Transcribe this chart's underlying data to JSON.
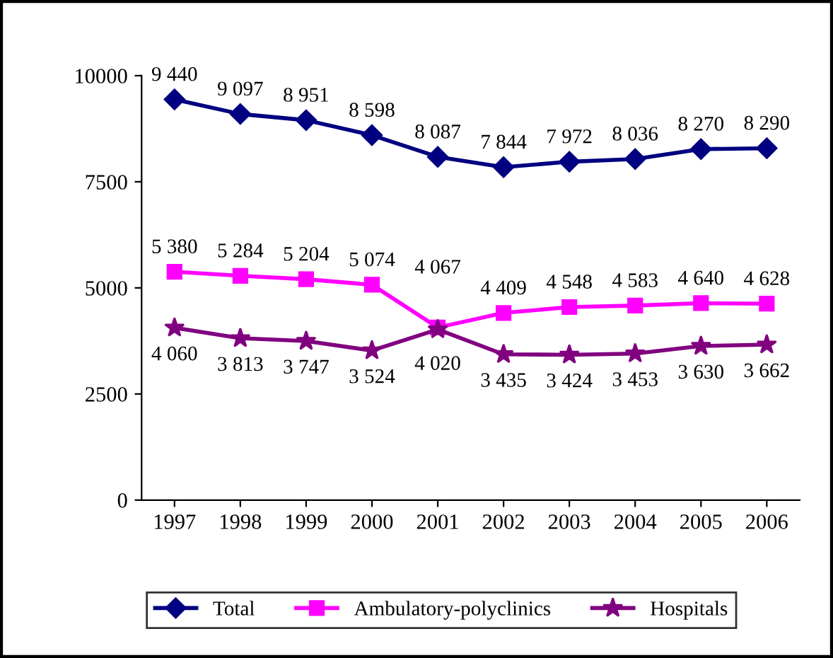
{
  "chart_data": {
    "type": "line",
    "categories": [
      "1997",
      "1998",
      "1999",
      "2000",
      "2001",
      "2002",
      "2003",
      "2004",
      "2005",
      "2006"
    ],
    "series": [
      {
        "name": "Total",
        "color": "#000080",
        "marker": "diamond",
        "values": [
          9440,
          9097,
          8951,
          8598,
          8087,
          7844,
          7972,
          8036,
          8270,
          8290
        ],
        "value_labels": [
          "9 440",
          "9 097",
          "8 951",
          "8 598",
          "8 087",
          "7 844",
          "7 972",
          "8 036",
          "8 270",
          "8 290"
        ]
      },
      {
        "name": "Ambulatory-polyclinics",
        "color": "#ff00ff",
        "marker": "square",
        "values": [
          5380,
          5284,
          5204,
          5074,
          4067,
          4409,
          4548,
          4583,
          4640,
          4628
        ],
        "value_labels": [
          "5 380",
          "5 284",
          "5 204",
          "5 074",
          "4 067",
          "4 409",
          "4 548",
          "4 583",
          "4 640",
          "4 628"
        ]
      },
      {
        "name": "Hospitals",
        "color": "#800080",
        "marker": "star",
        "values": [
          4060,
          3813,
          3747,
          3524,
          4020,
          3435,
          3424,
          3453,
          3630,
          3662
        ],
        "value_labels": [
          "4 060",
          "3 813",
          "3 747",
          "3 524",
          "4 020",
          "3 435",
          "3 424",
          "3 453",
          "3 630",
          "3 662"
        ]
      }
    ],
    "ylim": [
      0,
      10000
    ],
    "yticks": [
      0,
      2500,
      5000,
      7500,
      10000
    ],
    "grid": false,
    "legend": "bottom",
    "line_style": "solid"
  }
}
